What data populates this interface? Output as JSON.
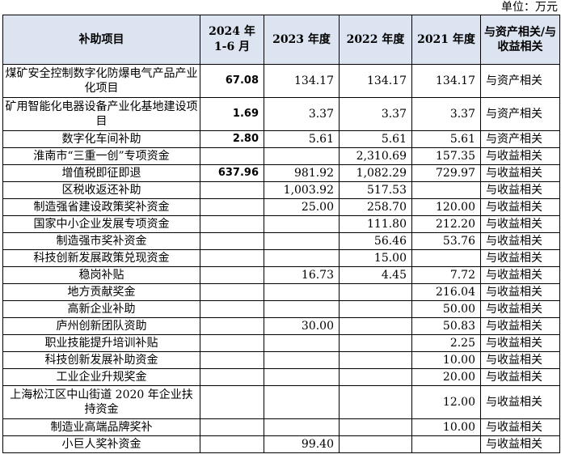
{
  "unit_label": "单位：万元",
  "header": {
    "item": "补助项目",
    "p2024_line1": "2024 年",
    "p2024_line2": "1-6 月",
    "y2023": "2023 年度",
    "y2022": "2022 年度",
    "y2021": "2021 年度",
    "relation": "与资产相关/与收益相关"
  },
  "rows": [
    {
      "item": "煤矿安全控制数字化防爆电气产品产业化项目",
      "v2024": "67.08",
      "v2023": "134.17",
      "v2022": "134.17",
      "v2021": "134.17",
      "relation": "与资产相关"
    },
    {
      "item": "矿用智能化电器设备产业化基地建设项目",
      "v2024": "1.69",
      "v2023": "3.37",
      "v2022": "3.37",
      "v2021": "3.37",
      "relation": "与资产相关"
    },
    {
      "item": "数字化车间补助",
      "v2024": "2.80",
      "v2023": "5.61",
      "v2022": "5.61",
      "v2021": "5.61",
      "relation": "与资产相关"
    },
    {
      "item": "淮南市“三重一创”专项资金",
      "v2024": "",
      "v2023": "",
      "v2022": "2,310.69",
      "v2021": "157.35",
      "relation": "与收益相关"
    },
    {
      "item": "增值税即征即退",
      "v2024": "637.96",
      "v2023": "981.92",
      "v2022": "1,082.29",
      "v2021": "729.97",
      "relation": "与收益相关"
    },
    {
      "item": "区税收返还补助",
      "v2024": "",
      "v2023": "1,003.92",
      "v2022": "517.53",
      "v2021": "",
      "relation": "与收益相关"
    },
    {
      "item": "制造强省建设政策奖补资金",
      "v2024": "",
      "v2023": "25.00",
      "v2022": "258.70",
      "v2021": "120.00",
      "relation": "与收益相关"
    },
    {
      "item": "国家中小企业发展专项资金",
      "v2024": "",
      "v2023": "",
      "v2022": "111.80",
      "v2021": "212.20",
      "relation": "与收益相关"
    },
    {
      "item": "制造强市奖补资金",
      "v2024": "",
      "v2023": "",
      "v2022": "56.46",
      "v2021": "53.76",
      "relation": "与收益相关"
    },
    {
      "item": "科技创新发展政策兑现资金",
      "v2024": "",
      "v2023": "",
      "v2022": "15.00",
      "v2021": "",
      "relation": "与收益相关"
    },
    {
      "item": "稳岗补贴",
      "v2024": "",
      "v2023": "16.73",
      "v2022": "4.45",
      "v2021": "7.72",
      "relation": "与收益相关"
    },
    {
      "item": "地方贡献奖金",
      "v2024": "",
      "v2023": "",
      "v2022": "",
      "v2021": "216.04",
      "relation": "与收益相关"
    },
    {
      "item": "高新企业补助",
      "v2024": "",
      "v2023": "",
      "v2022": "",
      "v2021": "50.00",
      "relation": "与收益相关"
    },
    {
      "item": "庐州创新团队资助",
      "v2024": "",
      "v2023": "30.00",
      "v2022": "",
      "v2021": "50.83",
      "relation": "与收益相关"
    },
    {
      "item": "职业技能提升培训补贴",
      "v2024": "",
      "v2023": "",
      "v2022": "",
      "v2021": "2.25",
      "relation": "与收益相关"
    },
    {
      "item": "科技创新发展补助资金",
      "v2024": "",
      "v2023": "",
      "v2022": "",
      "v2021": "10.00",
      "relation": "与收益相关"
    },
    {
      "item": "工业企业升规奖金",
      "v2024": "",
      "v2023": "",
      "v2022": "",
      "v2021": "20.00",
      "relation": "与收益相关"
    },
    {
      "item": "上海松江区中山街道 2020 年企业扶持资金",
      "v2024": "",
      "v2023": "",
      "v2022": "",
      "v2021": "12.00",
      "relation": "与收益相关"
    },
    {
      "item": "制造业高端品牌奖补",
      "v2024": "",
      "v2023": "",
      "v2022": "",
      "v2021": "10.00",
      "relation": "与收益相关"
    },
    {
      "item": "小巨人奖补资金",
      "v2024": "",
      "v2023": "99.40",
      "v2022": "",
      "v2021": "",
      "relation": "与收益相关"
    }
  ]
}
